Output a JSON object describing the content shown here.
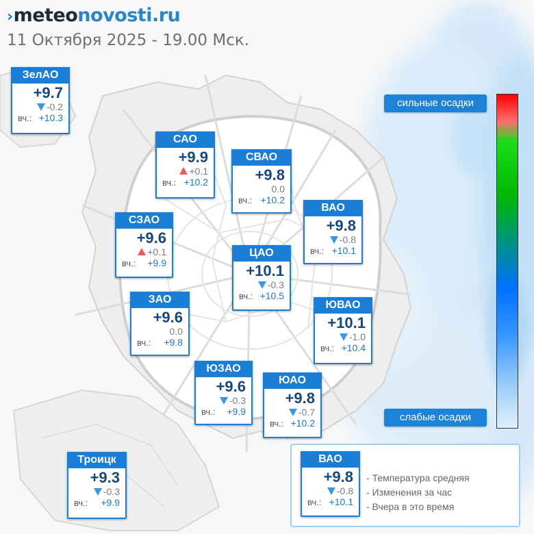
{
  "header": {
    "logo_prefix": "›",
    "logo_part1": "meteo",
    "logo_part2": "novosti.ru",
    "datetime": "11 Октября 2025 - 19.00 Мск."
  },
  "colors": {
    "card_blue": "#1a7dd6",
    "change_up": "#ef5a5a",
    "change_down": "#3b98e0",
    "scale_top": "#ff0000",
    "scale_bottom": "#dff0fc"
  },
  "districts": [
    {
      "name": "ЗелАО",
      "temp": "+9.7",
      "change": "-0.2",
      "trend": "down",
      "yest_label": "вч.:",
      "yest": "+10.3"
    },
    {
      "name": "САО",
      "temp": "+9.9",
      "change": "+0.1",
      "trend": "up",
      "yest_label": "вч.:",
      "yest": "+10.2"
    },
    {
      "name": "СВАО",
      "temp": "+9.8",
      "change": "0.0",
      "trend": "none",
      "yest_label": "вч.:",
      "yest": "+10.2"
    },
    {
      "name": "ВАО",
      "temp": "+9.8",
      "change": "-0.8",
      "trend": "down",
      "yest_label": "вч.:",
      "yest": "+10.1"
    },
    {
      "name": "СЗАО",
      "temp": "+9.6",
      "change": "+0.1",
      "trend": "up",
      "yest_label": "вч.:",
      "yest": "+9.9"
    },
    {
      "name": "ЦАО",
      "temp": "+10.1",
      "change": "-0.3",
      "trend": "down",
      "yest_label": "вч.:",
      "yest": "+10.5"
    },
    {
      "name": "ЗАО",
      "temp": "+9.6",
      "change": "0.0",
      "trend": "none",
      "yest_label": "вч.:",
      "yest": "+9.8"
    },
    {
      "name": "ЮВАО",
      "temp": "+10.1",
      "change": "-1.0",
      "trend": "down",
      "yest_label": "вч.:",
      "yest": "+10.4"
    },
    {
      "name": "ЮЗАО",
      "temp": "+9.6",
      "change": "-0.3",
      "trend": "down",
      "yest_label": "вч.:",
      "yest": "+9.9"
    },
    {
      "name": "ЮАО",
      "temp": "+9.8",
      "change": "-0.7",
      "trend": "down",
      "yest_label": "вч.:",
      "yest": "+10.2"
    },
    {
      "name": "Троицк",
      "temp": "+9.3",
      "change": "-0.3",
      "trend": "down",
      "yest_label": "вч.:",
      "yest": "+9.9"
    }
  ],
  "scale": {
    "top_label": "сильные осадки",
    "bottom_label": "слабые осадки"
  },
  "legend": {
    "card": {
      "name": "ВАО",
      "temp": "+9.8",
      "change": "-0.8",
      "trend": "down",
      "yest_label": "вч.:",
      "yest": "+10.1"
    },
    "lines": [
      "- Температура средняя",
      "- Изменения за час",
      "- Вчера в это время"
    ]
  }
}
